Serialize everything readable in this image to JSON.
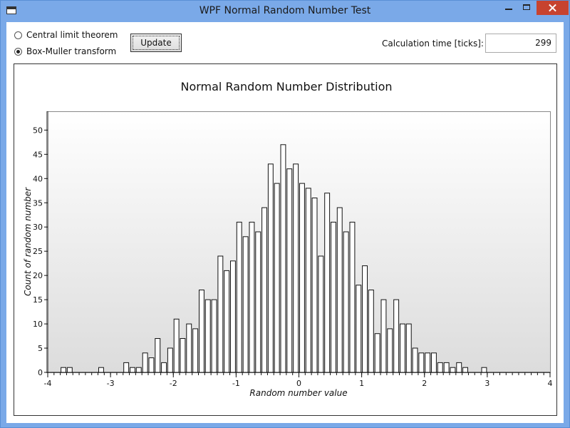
{
  "window": {
    "title": "WPF Normal Random Number Test"
  },
  "controls": {
    "radio_clt": {
      "label": "Central limit theorem",
      "checked": false
    },
    "radio_bm": {
      "label": "Box-Muller transform",
      "checked": true
    },
    "update_label": "Update",
    "calc_label": "Calculation time [ticks]:",
    "calc_value": "299"
  },
  "chart_data": {
    "type": "bar",
    "title": "Normal Random Number Distribution",
    "xlabel": "Random number value",
    "ylabel": "Count of random number",
    "xlim": [
      -4,
      4
    ],
    "ylim": [
      0,
      53
    ],
    "x_ticks": [
      -4,
      -3,
      -2,
      -1,
      0,
      1,
      2,
      3,
      4
    ],
    "y_ticks": [
      0,
      5,
      10,
      15,
      20,
      25,
      30,
      35,
      40,
      45,
      50
    ],
    "bin_width": 0.1,
    "x": [
      -3.75,
      -3.65,
      -3.15,
      -2.75,
      -2.65,
      -2.55,
      -2.45,
      -2.35,
      -2.25,
      -2.15,
      -2.05,
      -1.95,
      -1.85,
      -1.75,
      -1.65,
      -1.55,
      -1.45,
      -1.35,
      -1.25,
      -1.15,
      -1.05,
      -0.95,
      -0.85,
      -0.75,
      -0.65,
      -0.55,
      -0.45,
      -0.35,
      -0.25,
      -0.15,
      -0.05,
      0.05,
      0.15,
      0.25,
      0.35,
      0.45,
      0.55,
      0.65,
      0.75,
      0.85,
      0.95,
      1.05,
      1.15,
      1.25,
      1.35,
      1.45,
      1.55,
      1.65,
      1.75,
      1.85,
      1.95,
      2.05,
      2.15,
      2.25,
      2.35,
      2.45,
      2.55,
      2.65,
      2.95
    ],
    "values": [
      1,
      1,
      1,
      2,
      1,
      1,
      4,
      3,
      7,
      2,
      5,
      11,
      7,
      10,
      9,
      17,
      15,
      15,
      24,
      21,
      23,
      31,
      28,
      31,
      29,
      34,
      43,
      39,
      47,
      42,
      43,
      39,
      38,
      36,
      24,
      37,
      31,
      34,
      29,
      31,
      18,
      22,
      17,
      8,
      15,
      9,
      15,
      10,
      10,
      5,
      4,
      4,
      4,
      2,
      2,
      1,
      2,
      1,
      1
    ]
  }
}
